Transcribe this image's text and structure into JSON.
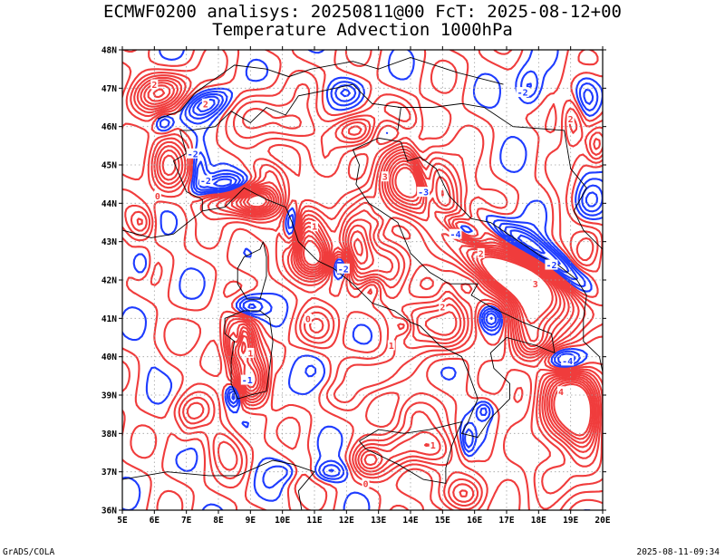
{
  "title": {
    "line1": "ECMWF0200 analisys: 20250811@00 FcT: 2025-08-12+00",
    "line2": "Temperature Advection 1000hPa"
  },
  "footer": {
    "left": "GrADS/COLA",
    "right": "2025-08-11-09:34"
  },
  "map": {
    "lon_labels": [
      "5E",
      "6E",
      "7E",
      "8E",
      "9E",
      "10E",
      "11E",
      "12E",
      "13E",
      "14E",
      "15E",
      "16E",
      "17E",
      "18E",
      "19E",
      "20E"
    ],
    "lat_labels": [
      "48N",
      "47N",
      "46N",
      "45N",
      "44N",
      "43N",
      "42N",
      "41N",
      "40N",
      "39N",
      "38N",
      "37N",
      "36N"
    ],
    "lon_range": [
      5,
      20
    ],
    "lat_range": [
      36,
      48
    ],
    "colors": {
      "warm_advection": "#f03c3c",
      "cold_advection": "#1e3cff",
      "coastline": "#000000",
      "grid": "#a0a0a0"
    },
    "contour_labels": {
      "warm": [
        "0",
        "1",
        "2",
        "3",
        "4"
      ],
      "cold": [
        "-1",
        "-2",
        "-3",
        "-4"
      ]
    }
  }
}
